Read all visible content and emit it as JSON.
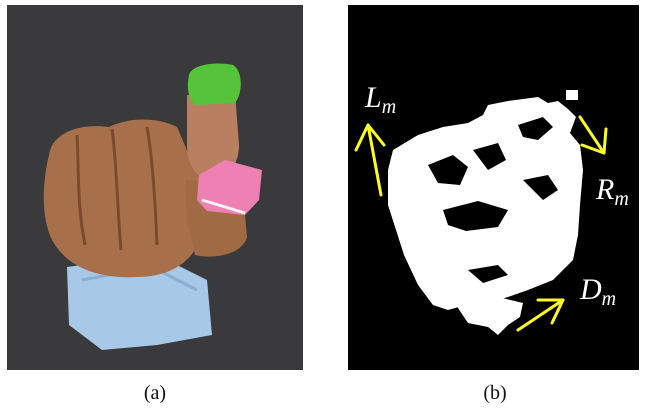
{
  "captions": {
    "a": "(a)",
    "b": "(b)"
  },
  "labels": {
    "left": {
      "main": "L",
      "sub": "m"
    },
    "right": {
      "main": "R",
      "sub": "m"
    },
    "down": {
      "main": "D",
      "sub": "m"
    }
  },
  "colors": {
    "background_a": "#3a3a3c",
    "background_b": "#000000",
    "skin": "#b07a55",
    "green_marker": "#56c43a",
    "pink_marker": "#ee80b4",
    "sleeve": "#a8c8e8",
    "arrow": "#ffff22",
    "mask": "#ffffff"
  }
}
